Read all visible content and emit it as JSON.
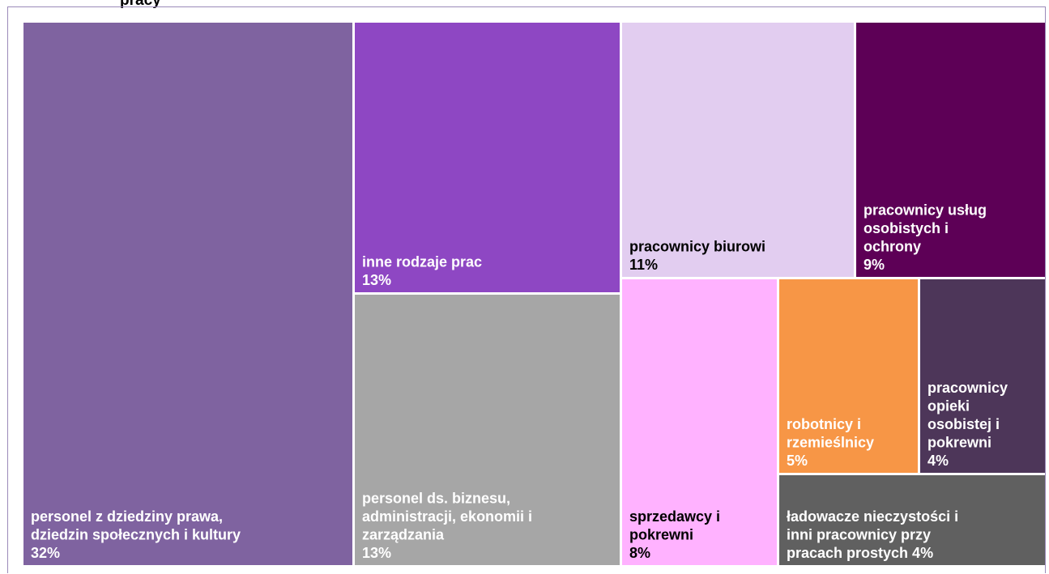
{
  "title": "pracy",
  "chart_data": {
    "type": "treemap",
    "title": "pracy",
    "items": [
      {
        "label_lines": [
          "personel z dziedziny prawa,",
          "dziedzin społecznych i kultury",
          "32%"
        ],
        "label": "personel z dziedziny prawa, dziedzin społecznych i kultury",
        "value": 32,
        "color": "#7f63a0",
        "text_color": "#ffffff"
      },
      {
        "label_lines": [
          "inne rodzaje prac",
          "13%"
        ],
        "label": "inne rodzaje prac",
        "value": 13,
        "color": "#8e47c3",
        "text_color": "#ffffff"
      },
      {
        "label_lines": [
          "personel ds. biznesu,",
          "administracji,  ekonomii i",
          "zarządzania",
          "13%"
        ],
        "label": "personel ds. biznesu, administracji, ekonomii i zarządzania",
        "value": 13,
        "color": "#a6a6a6",
        "text_color": "#ffffff"
      },
      {
        "label_lines": [
          "pracownicy biurowi",
          "11%"
        ],
        "label": "pracownicy biurowi",
        "value": 11,
        "color": "#e2cdf0",
        "text_color": "#000000"
      },
      {
        "label_lines": [
          "pracownicy usług",
          "osobistych i",
          "ochrony",
          "9%"
        ],
        "label": "pracownicy usług osobistych i ochrony",
        "value": 9,
        "color": "#5d0056",
        "text_color": "#ffffff"
      },
      {
        "label_lines": [
          "sprzedawcy i",
          "pokrewni",
          "8%"
        ],
        "label": "sprzedawcy i pokrewni",
        "value": 8,
        "color": "#ffb2ff",
        "text_color": "#000000"
      },
      {
        "label_lines": [
          "robotnicy i",
          "rzemieślnicy",
          "5%"
        ],
        "label": "robotnicy i rzemieślnicy",
        "value": 5,
        "color": "#f79646",
        "text_color": "#ffffff"
      },
      {
        "label_lines": [
          "pracownicy",
          "opieki",
          "osobistej i",
          "pokrewni",
          "4%"
        ],
        "label": "pracownicy opieki osobistej i pokrewni",
        "value": 4,
        "color": "#4d3659",
        "text_color": "#ffffff"
      },
      {
        "label_lines": [
          "ładowacze nieczystości i",
          "inni pracownicy przy",
          "pracach prostych 4%"
        ],
        "label": "ładowacze nieczystości i inni pracownicy przy pracach prostych",
        "value": 4,
        "color": "#606060",
        "text_color": "#ffffff"
      }
    ]
  }
}
